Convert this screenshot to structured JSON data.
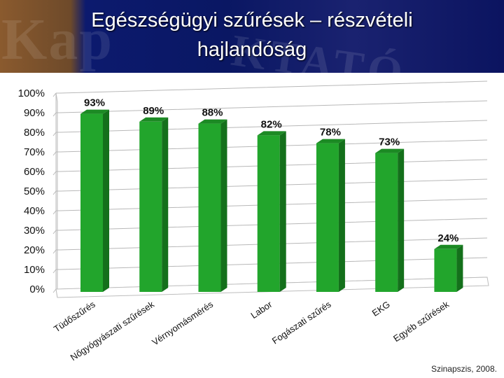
{
  "slide": {
    "title_line1": "Egészségügyi szűrések – részvételi",
    "title_line2": "hajlandóság",
    "source": "Szinapszis, 2008."
  },
  "colors": {
    "header": "#0a1763",
    "bar": "#22a52c",
    "bar_top": "#1c8a24",
    "bar_side": "#14701b"
  },
  "chart_data": {
    "type": "bar",
    "categories": [
      "Tüdőszűrés",
      "Nőgyógyászati szűrések",
      "Vérnyomásmérés",
      "Labor",
      "Fogászati szűrés",
      "EKG",
      "Egyéb szűrések"
    ],
    "values": [
      93,
      89,
      88,
      82,
      78,
      73,
      24
    ],
    "value_labels": [
      "93%",
      "89%",
      "88%",
      "82%",
      "78%",
      "73%",
      "24%"
    ],
    "ylim": [
      0,
      100
    ],
    "yticks": [
      "0%",
      "10%",
      "20%",
      "30%",
      "40%",
      "50%",
      "60%",
      "70%",
      "80%",
      "90%",
      "100%"
    ],
    "grid": true,
    "title": "",
    "xlabel": "",
    "ylabel": ""
  }
}
